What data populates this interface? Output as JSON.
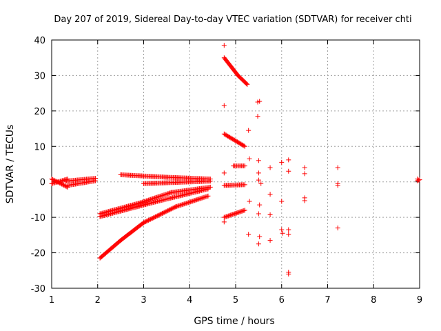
{
  "chart_data": {
    "type": "scatter",
    "title": "Day 207 of 2019, Sidereal Day-to-day VTEC variation (SDTVAR) for receiver chti",
    "xlabel": "GPS time / hours",
    "ylabel": "SDTVAR / TECUs",
    "xlim": [
      1,
      9
    ],
    "ylim": [
      -30,
      40
    ],
    "xticks": [
      "1",
      "2",
      "3",
      "4",
      "5",
      "6",
      "7",
      "8",
      "9"
    ],
    "yticks": [
      "40",
      "30",
      "20",
      "10",
      "0",
      "-10",
      "-20",
      "-30"
    ],
    "grid": true,
    "marker": "+",
    "color": "#ff0000",
    "segments": [
      {
        "x0": 1.0,
        "y0": -0.5,
        "x1": 1.35,
        "y1": 0.8
      },
      {
        "x0": 1.0,
        "y0": 0.8,
        "x1": 1.35,
        "y1": -1.5
      },
      {
        "x0": 1.3,
        "y0": 0.2,
        "x1": 1.95,
        "y1": 1.0
      },
      {
        "x0": 1.35,
        "y0": -1.0,
        "x1": 1.95,
        "y1": 0.3
      },
      {
        "x0": 2.5,
        "y0": 2.0,
        "x1": 3.5,
        "y1": 1.3
      },
      {
        "x0": 3.5,
        "y0": 1.3,
        "x1": 4.45,
        "y1": 0.8
      },
      {
        "x0": 3.0,
        "y0": -0.5,
        "x1": 4.45,
        "y1": 0.2
      },
      {
        "x0": 2.05,
        "y0": -9.0,
        "x1": 2.9,
        "y1": -6.0
      },
      {
        "x0": 2.9,
        "y0": -6.0,
        "x1": 3.6,
        "y1": -3.0
      },
      {
        "x0": 3.6,
        "y0": -3.0,
        "x1": 4.45,
        "y1": -1.5
      },
      {
        "x0": 2.05,
        "y0": -9.8,
        "x1": 3.3,
        "y1": -5.5
      },
      {
        "x0": 3.3,
        "y0": -5.5,
        "x1": 4.4,
        "y1": -2.0
      },
      {
        "x0": 2.05,
        "y0": -21.5,
        "x1": 2.5,
        "y1": -16.5
      },
      {
        "x0": 2.5,
        "y0": -16.5,
        "x1": 3.0,
        "y1": -11.5
      },
      {
        "x0": 3.0,
        "y0": -11.5,
        "x1": 3.7,
        "y1": -7.0
      },
      {
        "x0": 3.7,
        "y0": -7.0,
        "x1": 4.4,
        "y1": -4.0
      },
      {
        "x0": 4.75,
        "y0": 35.0,
        "x1": 5.05,
        "y1": 30.0
      },
      {
        "x0": 5.05,
        "y0": 30.0,
        "x1": 5.25,
        "y1": 27.5
      },
      {
        "x0": 4.75,
        "y0": 13.5,
        "x1": 5.2,
        "y1": 10.0
      },
      {
        "x0": 4.95,
        "y0": 4.5,
        "x1": 5.2,
        "y1": 4.5
      },
      {
        "x0": 4.75,
        "y0": -1.0,
        "x1": 5.2,
        "y1": -0.8
      },
      {
        "x0": 4.75,
        "y0": -10.0,
        "x1": 5.2,
        "y1": -8.0
      }
    ],
    "points": [
      [
        4.75,
        38.5
      ],
      [
        4.75,
        21.5
      ],
      [
        4.75,
        2.5
      ],
      [
        4.75,
        -11.3
      ],
      [
        5.25,
        27.5
      ],
      [
        5.28,
        14.5
      ],
      [
        5.3,
        6.5
      ],
      [
        5.3,
        -5.5
      ],
      [
        5.28,
        -14.8
      ],
      [
        5.48,
        22.5
      ],
      [
        5.52,
        22.7
      ],
      [
        5.48,
        18.5
      ],
      [
        5.5,
        6.0
      ],
      [
        5.5,
        0.5
      ],
      [
        5.55,
        -0.5
      ],
      [
        5.5,
        2.5
      ],
      [
        5.52,
        -6.5
      ],
      [
        5.5,
        -9.0
      ],
      [
        5.52,
        -15.5
      ],
      [
        5.5,
        -17.5
      ],
      [
        5.75,
        4.0
      ],
      [
        5.75,
        -3.5
      ],
      [
        5.75,
        -9.3
      ],
      [
        5.75,
        -16.5
      ],
      [
        6.0,
        5.5
      ],
      [
        6.0,
        -5.5
      ],
      [
        6.0,
        -13.5
      ],
      [
        6.02,
        -14.5
      ],
      [
        6.15,
        6.2
      ],
      [
        6.15,
        3.0
      ],
      [
        6.15,
        -13.5
      ],
      [
        6.15,
        -14.8
      ],
      [
        6.15,
        -25.5
      ],
      [
        6.15,
        -26.0
      ],
      [
        6.5,
        4.0
      ],
      [
        6.5,
        2.3
      ],
      [
        6.5,
        -4.5
      ],
      [
        6.5,
        -5.3
      ],
      [
        7.22,
        4.0
      ],
      [
        7.22,
        -0.5
      ],
      [
        7.22,
        -1.0
      ],
      [
        7.22,
        -13.0
      ],
      [
        8.95,
        0.8
      ],
      [
        8.95,
        0.3
      ],
      [
        8.98,
        0.5
      ],
      [
        9.0,
        0.6
      ]
    ]
  }
}
